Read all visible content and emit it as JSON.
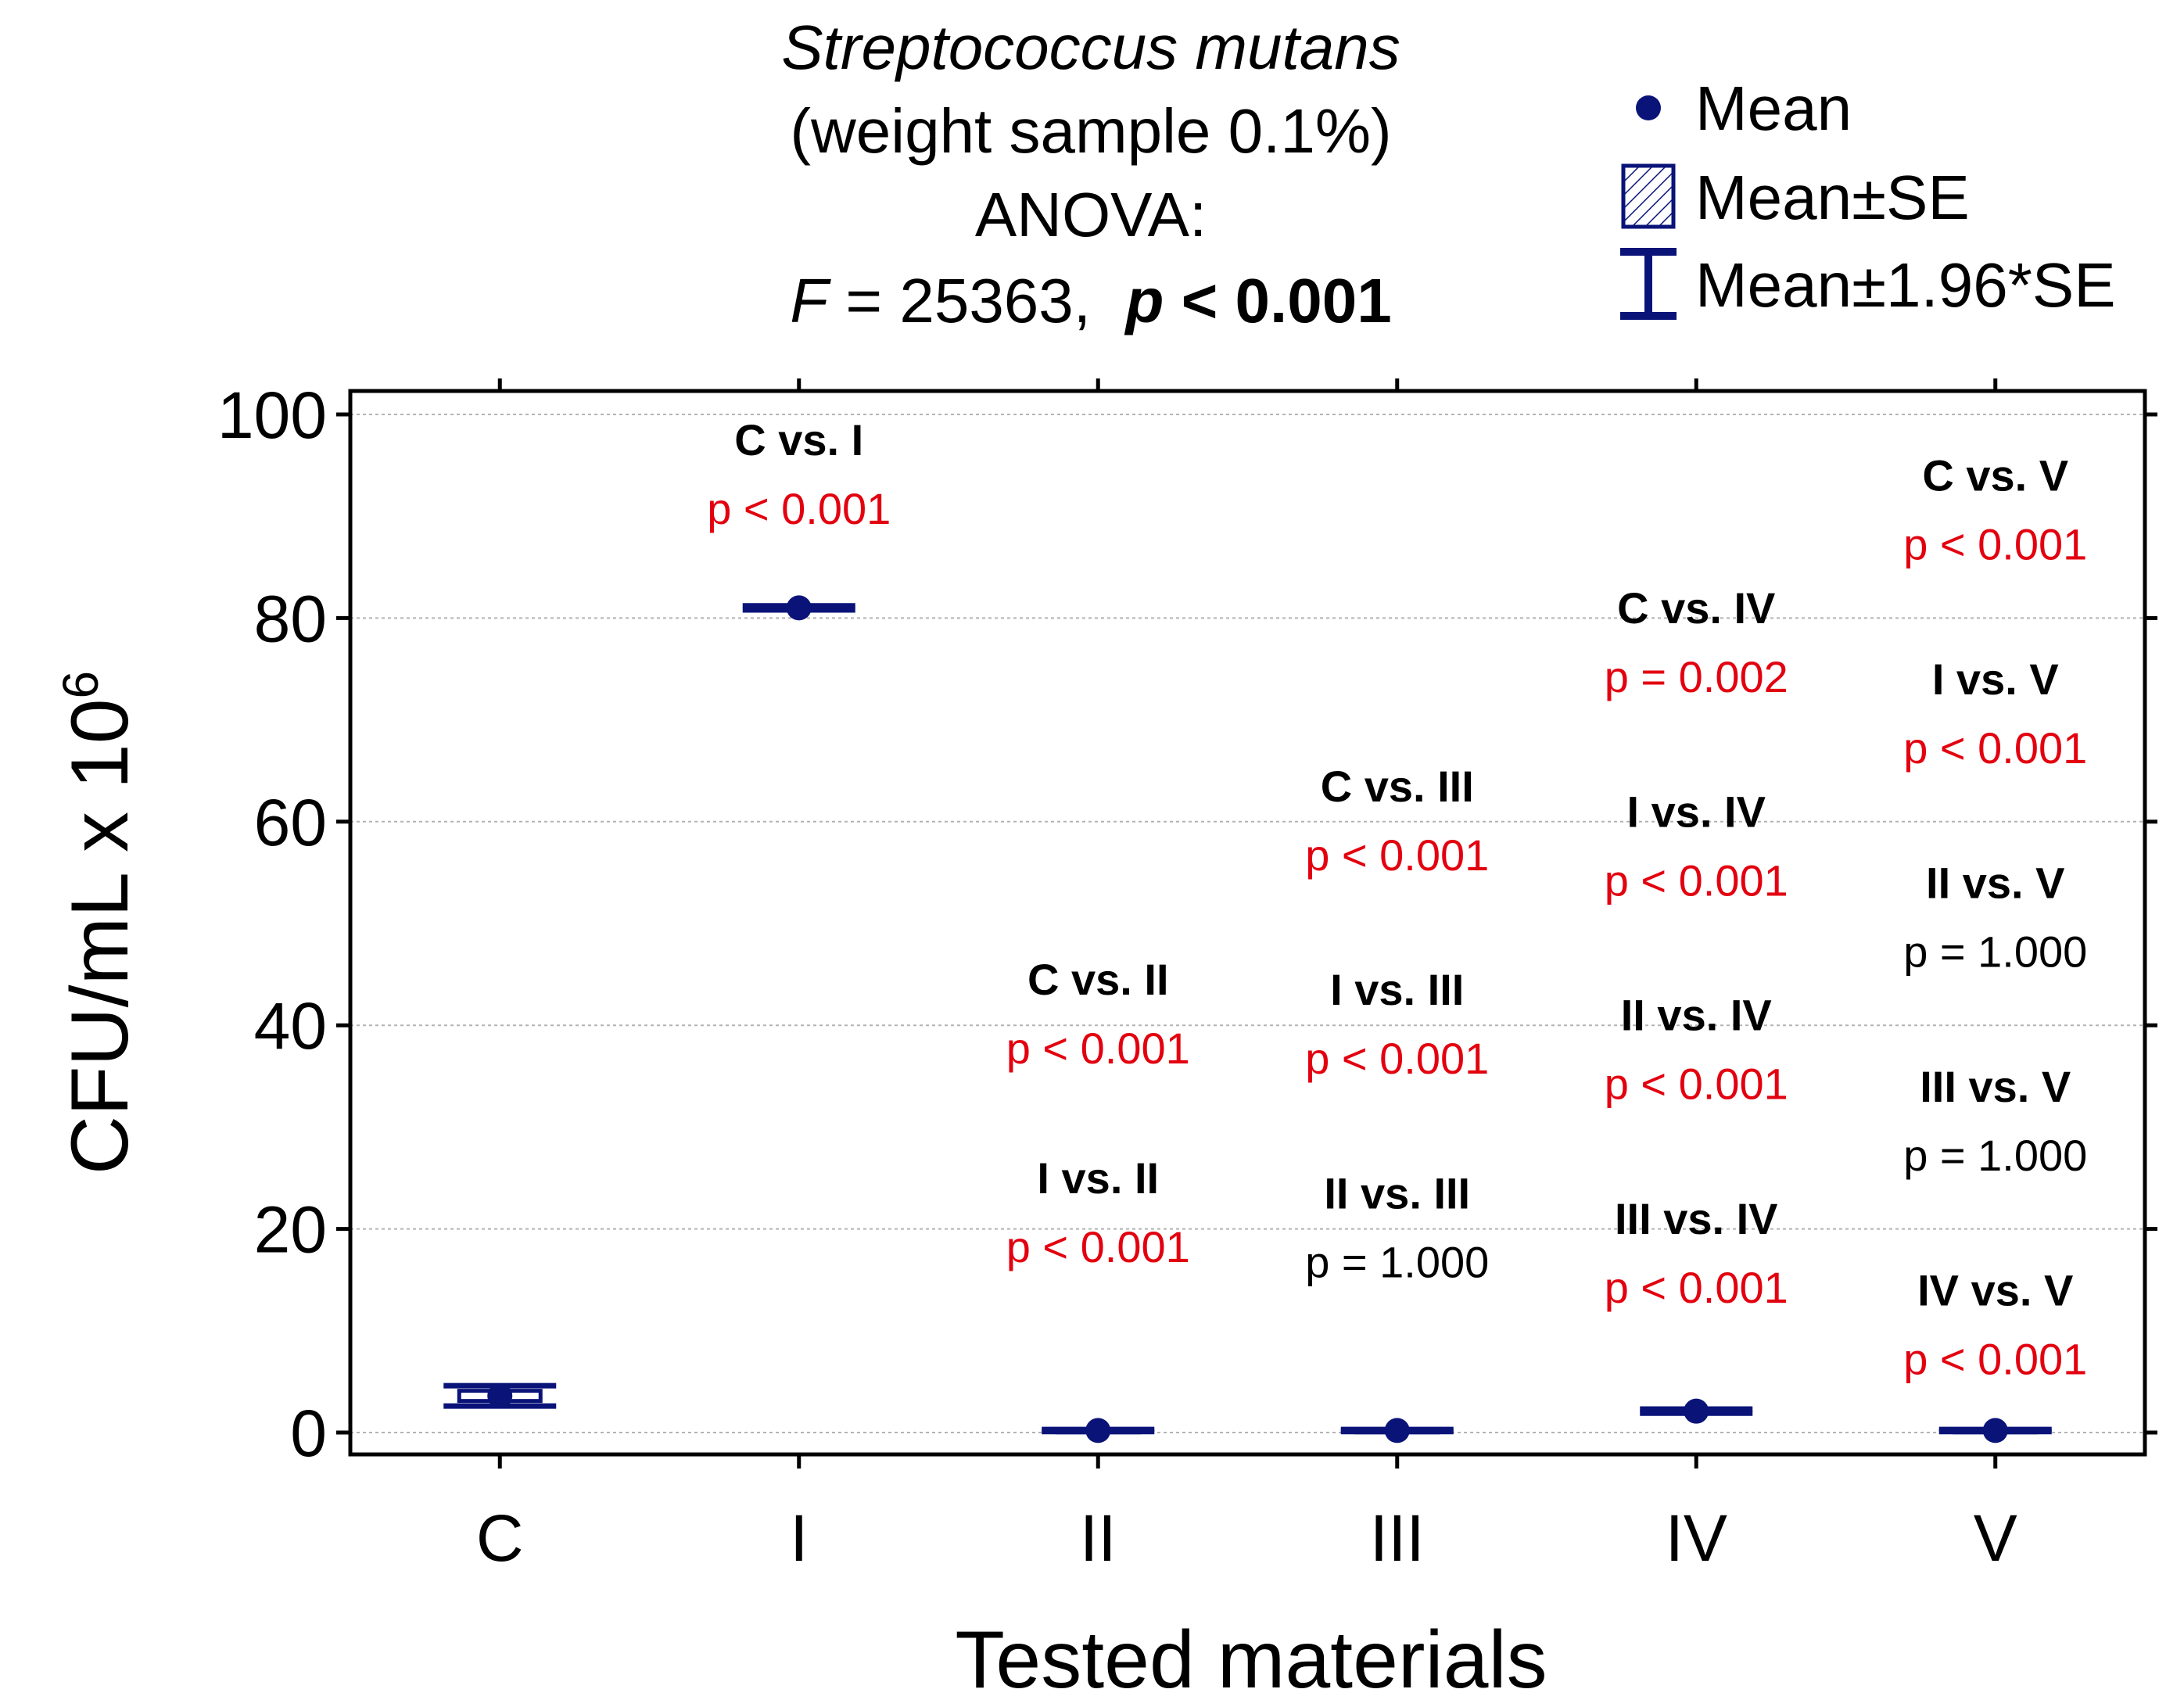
{
  "colors": {
    "mark": "#0a1378",
    "grid": "#b3b3b3",
    "sig": "#e3000f",
    "nonsig": "#000000",
    "axis": "#000000"
  },
  "title": {
    "species": "Streptococcus mutans",
    "subtitle": "(weight sample 0.1%)",
    "test": "ANOVA:",
    "f_label": "F",
    "f_value": " = 25363,  ",
    "p_label": "p",
    "p_value": " < 0.001"
  },
  "legend": {
    "mean": "Mean",
    "mean_se": "Mean±SE",
    "mean_ci": "Mean±1.96*SE",
    "mean_icon": "filled-circle-icon",
    "se_icon": "hatched-box-icon",
    "ci_icon": "error-bar-icon"
  },
  "chart_data": {
    "type": "box",
    "title": "Streptococcus mutans (weight sample 0.1%)",
    "xlabel": "Tested materials",
    "ylabel_base": "CFU/mL x 10",
    "ylabel_exp": "6",
    "ylim": [
      0,
      100
    ],
    "yticks": [
      0,
      20,
      40,
      60,
      80,
      100
    ],
    "grid": true,
    "legend_position": "top-right",
    "categories": [
      "C",
      "I",
      "II",
      "III",
      "IV",
      "V"
    ],
    "mean": [
      3.6,
      81.0,
      0.2,
      0.2,
      2.1,
      0.2
    ],
    "se": [
      0.5,
      0.1,
      0.05,
      0.05,
      0.1,
      0.05
    ],
    "ci": [
      1.0,
      0.2,
      0.1,
      0.1,
      0.2,
      0.1
    ],
    "comparisons": [
      {
        "label": "C vs. I",
        "p": "p < 0.001",
        "significant": true,
        "column": "I",
        "y": 96
      },
      {
        "label": "C vs. II",
        "p": "p < 0.001",
        "significant": true,
        "column": "II",
        "y": 43
      },
      {
        "label": "I vs. II",
        "p": "p < 0.001",
        "significant": true,
        "column": "II",
        "y": 23.5
      },
      {
        "label": "C vs. III",
        "p": "p < 0.001",
        "significant": true,
        "column": "III",
        "y": 62
      },
      {
        "label": "I vs. III",
        "p": "p < 0.001",
        "significant": true,
        "column": "III",
        "y": 42
      },
      {
        "label": "II vs. III",
        "p": "p = 1.000",
        "significant": false,
        "column": "III",
        "y": 22
      },
      {
        "label": "C vs. IV",
        "p": "p = 0.002",
        "significant": true,
        "column": "IV",
        "y": 79.5
      },
      {
        "label": "I vs. IV",
        "p": "p < 0.001",
        "significant": true,
        "column": "IV",
        "y": 59.5
      },
      {
        "label": "II vs. IV",
        "p": "p < 0.001",
        "significant": true,
        "column": "IV",
        "y": 39.5
      },
      {
        "label": "III vs. IV",
        "p": "p < 0.001",
        "significant": true,
        "column": "IV",
        "y": 19.5
      },
      {
        "label": "C vs. V",
        "p": "p < 0.001",
        "significant": true,
        "column": "V",
        "y": 92.5
      },
      {
        "label": "I vs. V",
        "p": "p < 0.001",
        "significant": true,
        "column": "V",
        "y": 72.5
      },
      {
        "label": "II vs. V",
        "p": "p = 1.000",
        "significant": false,
        "column": "V",
        "y": 52.5
      },
      {
        "label": "III vs. V",
        "p": "p = 1.000",
        "significant": false,
        "column": "V",
        "y": 32.5
      },
      {
        "label": "IV vs. V",
        "p": "p < 0.001",
        "significant": true,
        "column": "V",
        "y": 12.5
      }
    ]
  }
}
